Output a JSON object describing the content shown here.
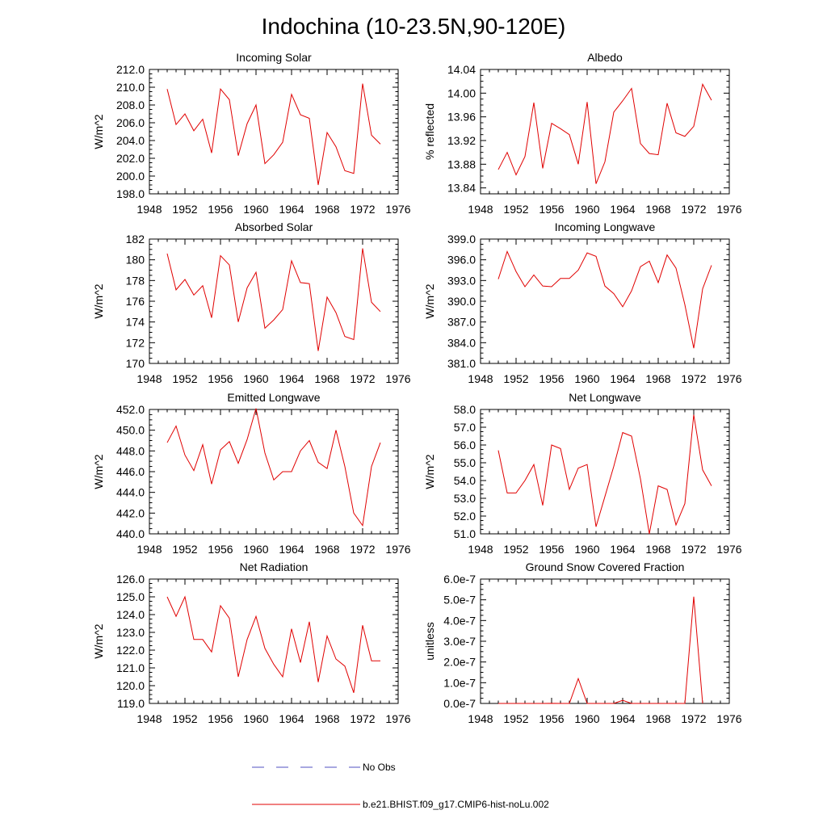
{
  "figure": {
    "title": "Indochina (10-23.5N,90-120E)"
  },
  "legend": [
    {
      "label": "No Obs",
      "color": "#5050c0",
      "dashed": true
    },
    {
      "label": "b.e21.BHIST.f09_g17.CMIP6-hist-noLu.002",
      "color": "#e00000",
      "dashed": false
    }
  ],
  "colors": {
    "series": "#e00000",
    "axis": "#000000"
  },
  "chart_data": [
    {
      "type": "line",
      "title": "Incoming Solar",
      "ylabel": "W/m^2",
      "xlim": [
        1948,
        1976
      ],
      "xticks": [
        "1948",
        "1952",
        "1956",
        "1960",
        "1964",
        "1968",
        "1972",
        "1976"
      ],
      "ylim": [
        198,
        212
      ],
      "yticks": [
        "198.0",
        "200.0",
        "202.0",
        "204.0",
        "206.0",
        "208.0",
        "210.0",
        "212.0"
      ],
      "x": [
        1950,
        1951,
        1952,
        1953,
        1954,
        1955,
        1956,
        1957,
        1958,
        1959,
        1960,
        1961,
        1962,
        1963,
        1964,
        1965,
        1966,
        1967,
        1968,
        1969,
        1970,
        1971,
        1972,
        1973,
        1974
      ],
      "series": [
        {
          "values": [
            209.8,
            205.8,
            207.0,
            205.1,
            206.4,
            202.6,
            209.8,
            208.6,
            202.3,
            205.9,
            208.0,
            201.4,
            202.4,
            203.8,
            209.2,
            206.9,
            206.5,
            199.0,
            204.9,
            203.3,
            200.6,
            200.3,
            210.4,
            204.6,
            203.6
          ]
        }
      ]
    },
    {
      "type": "line",
      "title": "Albedo",
      "ylabel": "% reflected",
      "xlim": [
        1948,
        1976
      ],
      "xticks": [
        "1948",
        "1952",
        "1956",
        "1960",
        "1964",
        "1968",
        "1972",
        "1976"
      ],
      "ylim": [
        13.83,
        14.04
      ],
      "yticks": [
        "13.84",
        "13.88",
        "13.92",
        "13.96",
        "14.00",
        "14.04"
      ],
      "x": [
        1950,
        1951,
        1952,
        1953,
        1954,
        1955,
        1956,
        1957,
        1958,
        1959,
        1960,
        1961,
        1962,
        1963,
        1964,
        1965,
        1966,
        1967,
        1968,
        1969,
        1970,
        1971,
        1972,
        1973,
        1974
      ],
      "series": [
        {
          "values": [
            13.871,
            13.9,
            13.862,
            13.893,
            13.984,
            13.873,
            13.949,
            13.94,
            13.93,
            13.88,
            13.985,
            13.847,
            13.884,
            13.968,
            13.987,
            14.008,
            13.915,
            13.898,
            13.896,
            13.983,
            13.933,
            13.927,
            13.944,
            14.015,
            13.988
          ]
        }
      ]
    },
    {
      "type": "line",
      "title": "Absorbed Solar",
      "ylabel": "W/m^2",
      "xlim": [
        1948,
        1976
      ],
      "xticks": [
        "1948",
        "1952",
        "1956",
        "1960",
        "1964",
        "1968",
        "1972",
        "1976"
      ],
      "ylim": [
        170,
        182
      ],
      "yticks": [
        "170",
        "172",
        "174",
        "176",
        "178",
        "180",
        "182"
      ],
      "x": [
        1950,
        1951,
        1952,
        1953,
        1954,
        1955,
        1956,
        1957,
        1958,
        1959,
        1960,
        1961,
        1962,
        1963,
        1964,
        1965,
        1966,
        1967,
        1968,
        1969,
        1970,
        1971,
        1972,
        1973,
        1974
      ],
      "series": [
        {
          "values": [
            180.6,
            177.1,
            178.1,
            176.6,
            177.5,
            174.4,
            180.4,
            179.5,
            174.0,
            177.3,
            178.8,
            173.4,
            174.2,
            175.2,
            179.9,
            177.8,
            177.7,
            171.2,
            176.4,
            174.9,
            172.6,
            172.3,
            181.1,
            175.9,
            175.0
          ]
        }
      ]
    },
    {
      "type": "line",
      "title": "Incoming Longwave",
      "ylabel": "W/m^2",
      "xlim": [
        1948,
        1976
      ],
      "xticks": [
        "1948",
        "1952",
        "1956",
        "1960",
        "1964",
        "1968",
        "1972",
        "1976"
      ],
      "ylim": [
        381,
        399
      ],
      "yticks": [
        "381.0",
        "384.0",
        "387.0",
        "390.0",
        "393.0",
        "396.0",
        "399.0"
      ],
      "x": [
        1950,
        1951,
        1952,
        1953,
        1954,
        1955,
        1956,
        1957,
        1958,
        1959,
        1960,
        1961,
        1962,
        1963,
        1964,
        1965,
        1966,
        1967,
        1968,
        1969,
        1970,
        1971,
        1972,
        1973,
        1974
      ],
      "series": [
        {
          "values": [
            393.2,
            397.2,
            394.3,
            392.1,
            393.8,
            392.2,
            392.1,
            393.3,
            393.3,
            394.5,
            397.0,
            396.5,
            392.2,
            391.1,
            389.2,
            391.5,
            395.0,
            395.8,
            392.7,
            396.7,
            394.8,
            389.5,
            383.2,
            391.8,
            395.2
          ]
        }
      ]
    },
    {
      "type": "line",
      "title": "Emitted Longwave",
      "ylabel": "W/m^2",
      "xlim": [
        1948,
        1976
      ],
      "xticks": [
        "1948",
        "1952",
        "1956",
        "1960",
        "1964",
        "1968",
        "1972",
        "1976"
      ],
      "ylim": [
        440,
        452
      ],
      "yticks": [
        "440.0",
        "442.0",
        "444.0",
        "446.0",
        "448.0",
        "450.0",
        "452.0"
      ],
      "x": [
        1950,
        1951,
        1952,
        1953,
        1954,
        1955,
        1956,
        1957,
        1958,
        1959,
        1960,
        1961,
        1962,
        1963,
        1964,
        1965,
        1966,
        1967,
        1968,
        1969,
        1970,
        1971,
        1972,
        1973,
        1974
      ],
      "series": [
        {
          "values": [
            448.8,
            450.4,
            447.6,
            446.1,
            448.6,
            444.8,
            448.1,
            448.9,
            446.8,
            449.1,
            452.1,
            447.8,
            445.2,
            446.0,
            446.0,
            448.0,
            449.0,
            446.9,
            446.3,
            450.0,
            446.5,
            442.0,
            440.8,
            446.5,
            448.8
          ]
        }
      ]
    },
    {
      "type": "line",
      "title": "Net Longwave",
      "ylabel": "W/m^2",
      "xlim": [
        1948,
        1976
      ],
      "xticks": [
        "1948",
        "1952",
        "1956",
        "1960",
        "1964",
        "1968",
        "1972",
        "1976"
      ],
      "ylim": [
        51,
        58
      ],
      "yticks": [
        "51.0",
        "52.0",
        "53.0",
        "54.0",
        "55.0",
        "56.0",
        "57.0",
        "58.0"
      ],
      "x": [
        1950,
        1951,
        1952,
        1953,
        1954,
        1955,
        1956,
        1957,
        1958,
        1959,
        1960,
        1961,
        1962,
        1963,
        1964,
        1965,
        1966,
        1967,
        1968,
        1969,
        1970,
        1971,
        1972,
        1973,
        1974
      ],
      "series": [
        {
          "values": [
            55.7,
            53.3,
            53.3,
            54.0,
            54.9,
            52.6,
            56.0,
            55.8,
            53.5,
            54.7,
            54.9,
            51.4,
            53.1,
            54.8,
            56.7,
            56.5,
            54.1,
            51.0,
            53.7,
            53.5,
            51.5,
            52.7,
            57.7,
            54.6,
            53.7
          ]
        }
      ]
    },
    {
      "type": "line",
      "title": "Net Radiation",
      "ylabel": "W/m^2",
      "xlim": [
        1948,
        1976
      ],
      "xticks": [
        "1948",
        "1952",
        "1956",
        "1960",
        "1964",
        "1968",
        "1972",
        "1976"
      ],
      "ylim": [
        119,
        126
      ],
      "yticks": [
        "119.0",
        "120.0",
        "121.0",
        "122.0",
        "123.0",
        "124.0",
        "125.0",
        "126.0"
      ],
      "x": [
        1950,
        1951,
        1952,
        1953,
        1954,
        1955,
        1956,
        1957,
        1958,
        1959,
        1960,
        1961,
        1962,
        1963,
        1964,
        1965,
        1966,
        1967,
        1968,
        1969,
        1970,
        1971,
        1972,
        1973,
        1974
      ],
      "series": [
        {
          "values": [
            125.0,
            123.9,
            125.0,
            122.6,
            122.6,
            121.9,
            124.5,
            123.8,
            120.5,
            122.6,
            123.9,
            122.1,
            121.2,
            120.5,
            123.2,
            121.3,
            123.6,
            120.2,
            122.8,
            121.5,
            121.1,
            119.6,
            123.4,
            121.4,
            121.4
          ]
        }
      ]
    },
    {
      "type": "line",
      "title": "Ground Snow Covered Fraction",
      "ylabel": "unitless",
      "xlim": [
        1948,
        1976
      ],
      "xticks": [
        "1948",
        "1952",
        "1956",
        "1960",
        "1964",
        "1968",
        "1972",
        "1976"
      ],
      "ylim": [
        0,
        6e-07
      ],
      "yticks": [
        "0.0e-7",
        "1.0e-7",
        "2.0e-7",
        "3.0e-7",
        "4.0e-7",
        "5.0e-7",
        "6.0e-7"
      ],
      "x": [
        1950,
        1951,
        1952,
        1953,
        1954,
        1955,
        1956,
        1957,
        1958,
        1959,
        1960,
        1961,
        1962,
        1963,
        1964,
        1965,
        1966,
        1967,
        1968,
        1969,
        1970,
        1971,
        1972,
        1973,
        1974
      ],
      "series": [
        {
          "values": [
            0,
            0,
            0,
            0,
            0,
            0,
            5e-10,
            0,
            0,
            1.2e-07,
            0,
            0,
            0,
            0,
            1.5e-08,
            0,
            0,
            0,
            0,
            0,
            0,
            0,
            5.15e-07,
            0,
            null
          ]
        }
      ]
    }
  ]
}
